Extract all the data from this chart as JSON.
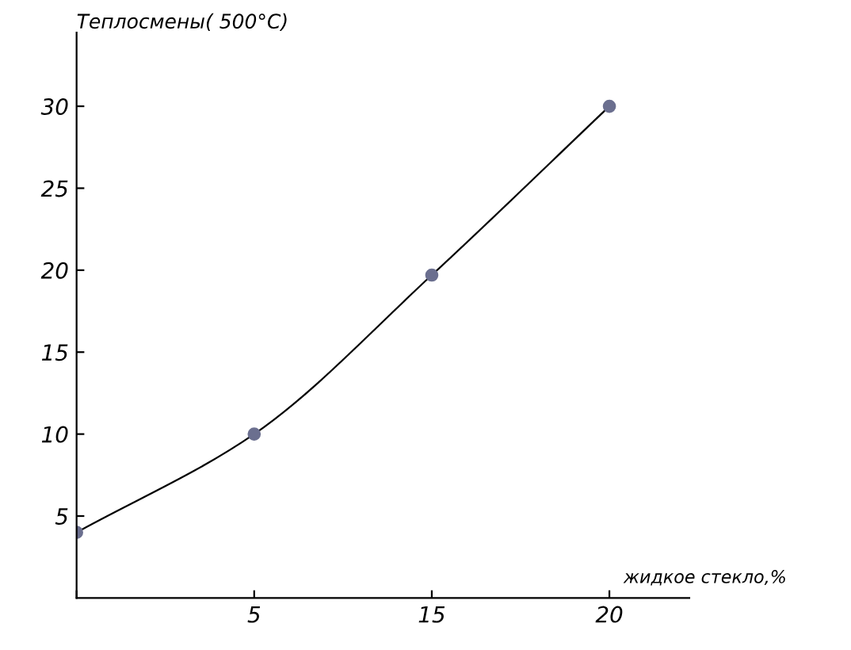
{
  "chart_data": {
    "type": "line",
    "ylabel": "Теплосмены( 500°C)",
    "xlabel": "жидкое стекло,%",
    "categories": [
      null,
      "5",
      "15",
      "20"
    ],
    "series": [
      {
        "color": "#6b6f8f",
        "values": [
          4,
          10,
          19.7,
          30
        ]
      }
    ],
    "ylim": [
      0,
      34.5
    ],
    "yticks": [
      5,
      10,
      15,
      20,
      25,
      30
    ],
    "marker": "circle",
    "grid": false
  }
}
